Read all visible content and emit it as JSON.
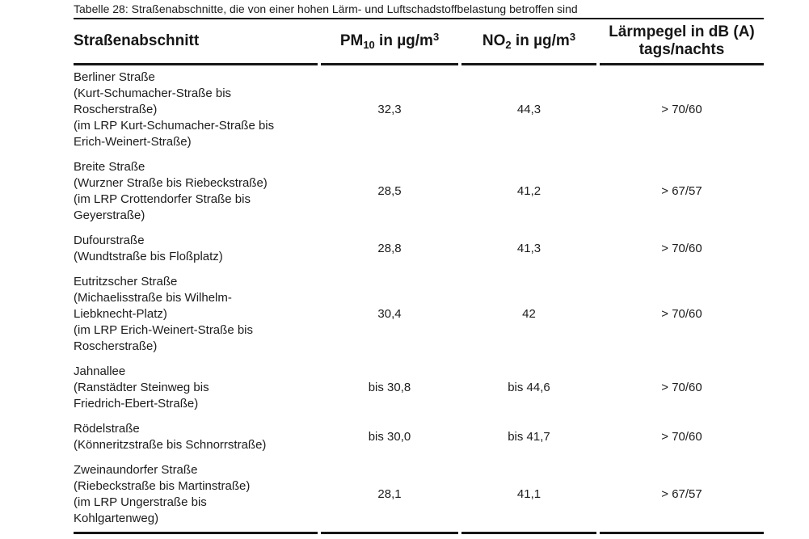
{
  "caption": "Tabelle 28: Straßenabschnitte, die von einer hohen Lärm- und Luftschadstoffbelastung betroffen sind",
  "table": {
    "columns": [
      {
        "label": "Straßenabschnitt"
      },
      {
        "base": "PM",
        "sub": "10",
        "mid": " in µg/m",
        "sup": "3"
      },
      {
        "base": "NO",
        "sub": "2",
        "mid": " in µg/m",
        "sup": "3"
      },
      {
        "label": "Lärmpegel in dB (A)\ntags/nachts"
      }
    ],
    "rows": [
      {
        "street": "Berliner Straße\n(Kurt-Schumacher-Straße bis\nRoscherstraße)\n(im LRP Kurt-Schumacher-Straße bis\nErich-Weinert-Straße)",
        "pm10": "32,3",
        "no2": "44,3",
        "noise": "> 70/60"
      },
      {
        "street": "Breite Straße\n(Wurzner Straße bis Riebeckstraße)\n(im LRP Crottendorfer Straße bis\nGeyerstraße)",
        "pm10": "28,5",
        "no2": "41,2",
        "noise": "> 67/57"
      },
      {
        "street": "Dufourstraße\n(Wundtstraße bis Floßplatz)",
        "pm10": "28,8",
        "no2": "41,3",
        "noise": "> 70/60"
      },
      {
        "street": "Eutritzscher Straße\n(Michaelisstraße bis Wilhelm-\nLiebknecht-Platz)\n(im LRP Erich-Weinert-Straße bis\nRoscherstraße)",
        "pm10": "30,4",
        "no2": "42",
        "noise": "> 70/60"
      },
      {
        "street": "Jahnallee\n(Ranstädter Steinweg bis\nFriedrich-Ebert-Straße)",
        "pm10": "bis 30,8",
        "no2": "bis 44,6",
        "noise": "> 70/60"
      },
      {
        "street": "Rödelstraße\n(Könneritzstraße bis Schnorrstraße)",
        "pm10": "bis 30,0",
        "no2": "bis 41,7",
        "noise": "> 70/60"
      },
      {
        "street": "Zweinaundorfer Straße\n(Riebeckstraße bis Martinstraße)\n(im LRP Ungerstraße bis\nKohlgartenweg)",
        "pm10": "28,1",
        "no2": "41,1",
        "noise": "> 67/57"
      }
    ]
  }
}
